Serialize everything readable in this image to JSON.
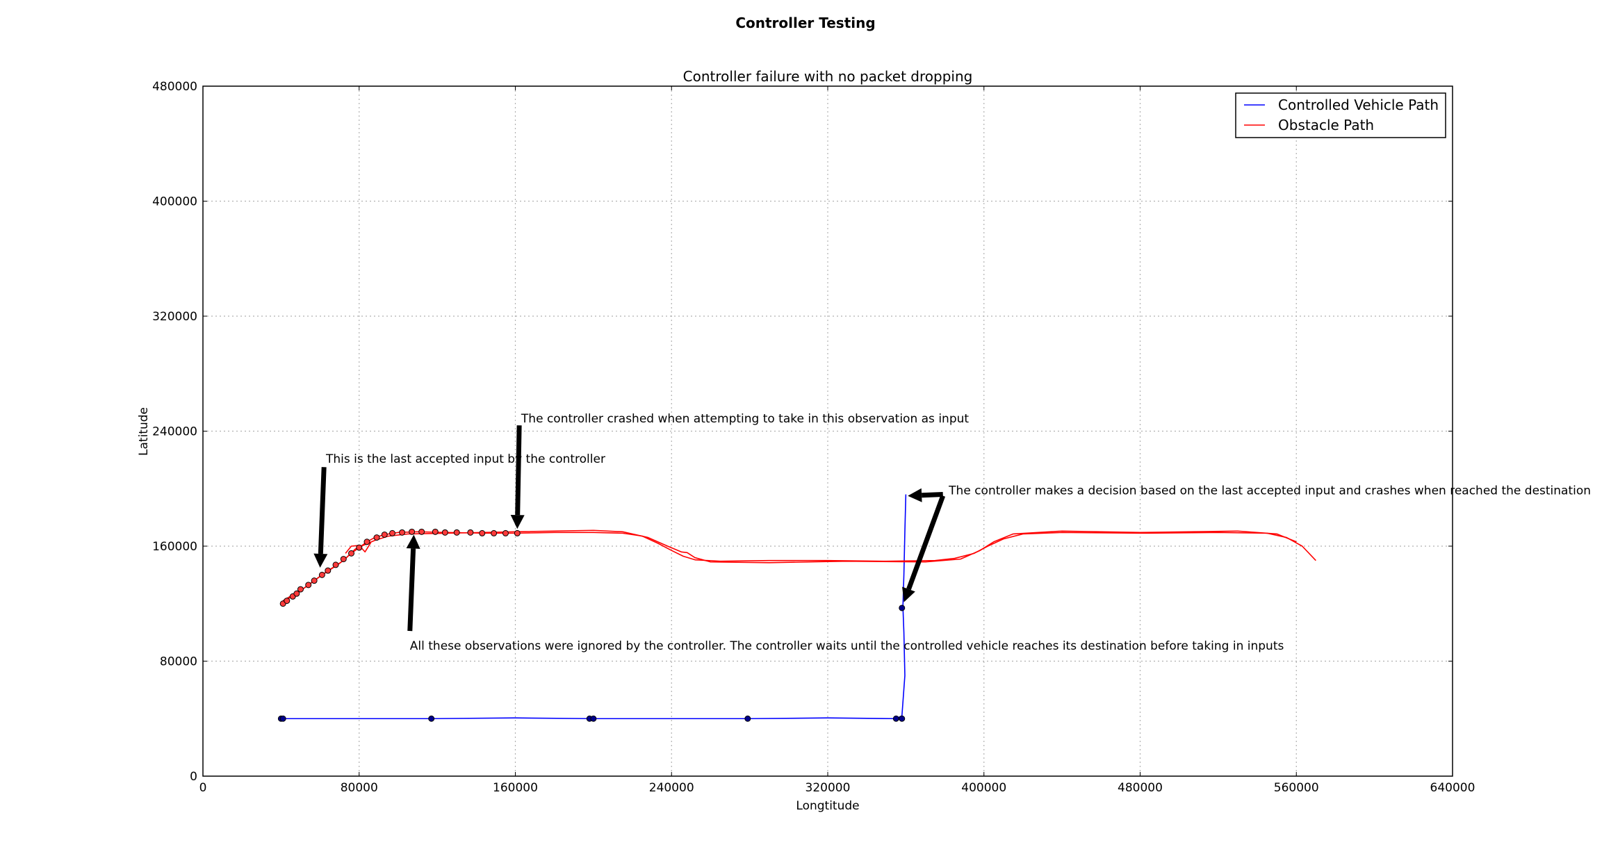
{
  "chart_data": {
    "type": "line",
    "suptitle": "Controller Testing",
    "title": "Controller failure with no packet dropping",
    "xlabel": "Longtitude",
    "ylabel": "Latitude",
    "xlim": [
      0,
      640000
    ],
    "ylim": [
      0,
      480000
    ],
    "xticks": [
      0,
      80000,
      160000,
      240000,
      320000,
      400000,
      480000,
      560000,
      640000
    ],
    "yticks": [
      0,
      80000,
      160000,
      240000,
      320000,
      400000,
      480000
    ],
    "xtick_labels": [
      "0",
      "80000",
      "160000",
      "240000",
      "320000",
      "400000",
      "480000",
      "560000",
      "640000"
    ],
    "ytick_labels": [
      "0",
      "80000",
      "160000",
      "240000",
      "320000",
      "400000",
      "480000"
    ],
    "grid": true,
    "legend_position": "top-right",
    "colors": {
      "controlled": "#0000ff",
      "obstacle": "#ff0000",
      "markers": "#000000"
    },
    "series": [
      {
        "name": "Controlled Vehicle Path",
        "color": "#0000ff",
        "lines": [
          [
            [
              40000,
              40000
            ],
            [
              80000,
              40000
            ],
            [
              117000,
              40000
            ],
            [
              160000,
              40500
            ],
            [
              200000,
              40000
            ],
            [
              279000,
              40000
            ],
            [
              320000,
              40500
            ],
            [
              355000,
              40000
            ],
            [
              358000,
              42000
            ],
            [
              359500,
              70000
            ],
            [
              359000,
              100000
            ],
            [
              358500,
              118000
            ],
            [
              359000,
              140000
            ],
            [
              359500,
              170000
            ],
            [
              360000,
              196000
            ]
          ]
        ],
        "markers": [
          [
            40000,
            40000
          ],
          [
            41000,
            40000
          ],
          [
            117000,
            40000
          ],
          [
            198000,
            40000
          ],
          [
            200000,
            40000
          ],
          [
            279000,
            40000
          ],
          [
            355000,
            40000
          ],
          [
            358000,
            40000
          ],
          [
            358000,
            117000
          ]
        ]
      },
      {
        "name": "Obstacle Path",
        "color": "#ff0000",
        "lines": [
          [
            [
              40000,
              120000
            ],
            [
              50000,
              129000
            ],
            [
              60000,
              139000
            ],
            [
              70000,
              148000
            ],
            [
              76000,
              155000
            ],
            [
              80000,
              159000
            ],
            [
              84000,
              163000
            ],
            [
              88000,
              166000
            ],
            [
              93000,
              168000
            ],
            [
              100000,
              169500
            ],
            [
              110000,
              170000
            ],
            [
              125000,
              169500
            ],
            [
              145000,
              169000
            ],
            [
              160000,
              169000
            ],
            [
              180000,
              169500
            ],
            [
              200000,
              169500
            ],
            [
              215000,
              169000
            ],
            [
              225000,
              167000
            ],
            [
              233000,
              162000
            ],
            [
              240000,
              157000
            ],
            [
              246000,
              153000
            ],
            [
              252000,
              150500
            ],
            [
              265000,
              149500
            ],
            [
              290000,
              150000
            ],
            [
              320000,
              150000
            ],
            [
              350000,
              149500
            ],
            [
              375000,
              150000
            ],
            [
              385000,
              151500
            ],
            [
              395000,
              155000
            ],
            [
              402000,
              160000
            ],
            [
              410000,
              165000
            ],
            [
              420000,
              168500
            ],
            [
              440000,
              169500
            ],
            [
              480000,
              169000
            ],
            [
              520000,
              169500
            ],
            [
              545000,
              169000
            ],
            [
              555000,
              166000
            ],
            [
              563000,
              160000
            ],
            [
              570000,
              150000
            ]
          ],
          [
            [
              41000,
              122000
            ],
            [
              52000,
              131000
            ],
            [
              62000,
              141000
            ],
            [
              72000,
              150000
            ],
            [
              78000,
              158000
            ],
            [
              82000,
              160500
            ],
            [
              88000,
              164000
            ],
            [
              95000,
              167000
            ],
            [
              105000,
              168500
            ],
            [
              125000,
              169000
            ],
            [
              160000,
              170000
            ],
            [
              200000,
              171000
            ],
            [
              215000,
              170000
            ],
            [
              228000,
              166000
            ],
            [
              238000,
              160000
            ],
            [
              245000,
              156000
            ],
            [
              248000,
              155500
            ],
            [
              252000,
              152000
            ],
            [
              260000,
              149000
            ],
            [
              290000,
              148500
            ],
            [
              330000,
              149500
            ],
            [
              370000,
              149000
            ],
            [
              388000,
              151000
            ],
            [
              398000,
              157000
            ],
            [
              405000,
              163000
            ],
            [
              415000,
              168500
            ],
            [
              440000,
              170500
            ],
            [
              480000,
              169500
            ],
            [
              530000,
              170500
            ],
            [
              550000,
              168500
            ],
            [
              560000,
              163000
            ]
          ],
          [
            [
              73000,
              155000
            ],
            [
              76000,
              160000
            ],
            [
              80000,
              160500
            ],
            [
              83000,
              156000
            ],
            [
              86000,
              162500
            ]
          ]
        ],
        "markers": [
          [
            41000,
            120000
          ],
          [
            43000,
            122000
          ],
          [
            46000,
            125000
          ],
          [
            48000,
            127000
          ],
          [
            50000,
            130000
          ],
          [
            54000,
            133000
          ],
          [
            57000,
            136000
          ],
          [
            61000,
            140000
          ],
          [
            64000,
            143000
          ],
          [
            68000,
            147000
          ],
          [
            72000,
            151000
          ],
          [
            76000,
            155000
          ],
          [
            80000,
            159000
          ],
          [
            84000,
            163000
          ],
          [
            89000,
            166000
          ],
          [
            93000,
            168000
          ],
          [
            97000,
            169000
          ],
          [
            102000,
            169500
          ],
          [
            107000,
            170000
          ],
          [
            112000,
            170000
          ],
          [
            119000,
            170000
          ],
          [
            124000,
            169500
          ],
          [
            130000,
            169500
          ],
          [
            137000,
            169500
          ],
          [
            143000,
            169000
          ],
          [
            149000,
            169000
          ],
          [
            155000,
            169000
          ],
          [
            161000,
            169000
          ]
        ]
      }
    ],
    "annotations": [
      {
        "text": "The controller crashed when attempting to take in this observation as input",
        "text_at": [
          163000,
          246000
        ],
        "arrow_from": [
          162000,
          244000
        ],
        "arrow_to": [
          161000,
          172000
        ]
      },
      {
        "text": "This is the last accepted input by the controller",
        "text_at": [
          63000,
          218000
        ],
        "arrow_from": [
          62000,
          215000
        ],
        "arrow_to": [
          60000,
          145000
        ]
      },
      {
        "text": "The controller makes a decision based on the last accepted input and crashes when reached the destination",
        "text_at": [
          382000,
          196000
        ],
        "arrow_from": [
          379000,
          195000
        ],
        "arrow_to": [
          359000,
          121000
        ],
        "arrow_extra": [
          [
            379000,
            196000
          ],
          [
            361000,
            195000
          ]
        ]
      },
      {
        "text": "All these observations were ignored by the controller. The controller waits until the controlled vehicle reaches its destination before taking in inputs",
        "text_at": [
          106000,
          88000
        ],
        "arrow_from": [
          106000,
          101000
        ],
        "arrow_to": [
          108000,
          168000
        ]
      }
    ]
  }
}
